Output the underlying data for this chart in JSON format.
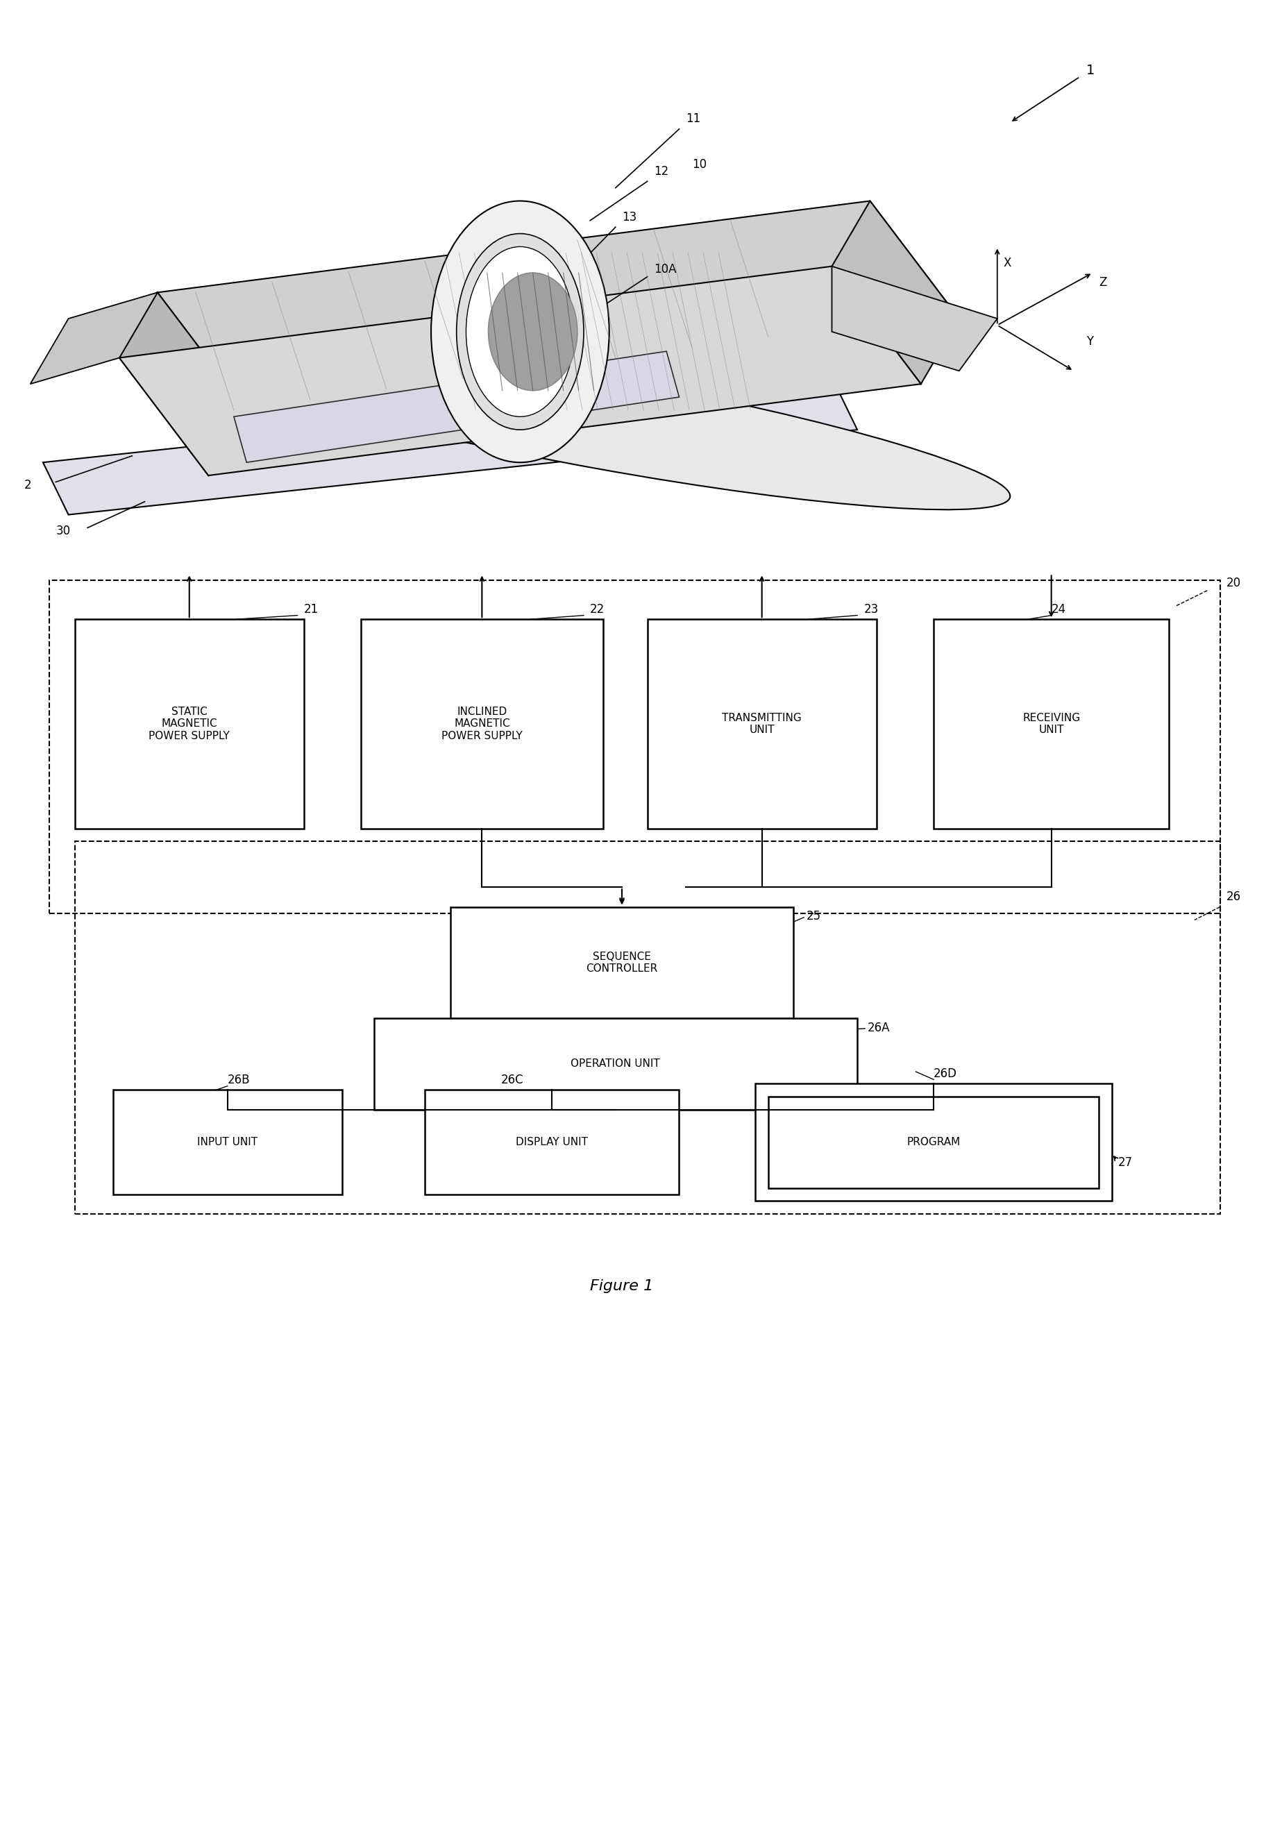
{
  "fig_width": 18.47,
  "fig_height": 26.51,
  "bg_color": "#ffffff",
  "title": "Figure 1",
  "label_1": "1",
  "label_2": "2",
  "label_10": "10",
  "label_10A": "10A",
  "label_11": "11",
  "label_12": "12",
  "label_13": "13",
  "label_20": "20",
  "label_21": "21",
  "label_22": "22",
  "label_23": "23",
  "label_24": "24",
  "label_25": "25",
  "label_26": "26",
  "label_26A": "26A",
  "label_26B": "26B",
  "label_26C": "26C",
  "label_26D": "26D",
  "label_27": "27",
  "label_30": "30",
  "box_21_text": "STATIC\nMAGNETIC\nPOWER SUPPLY",
  "box_22_text": "INCLINED\nMAGNETIC\nPOWER SUPPLY",
  "box_23_text": "TRANSMITTING\nUNIT",
  "box_24_text": "RECEIVING\nUNIT",
  "box_25_text": "SEQUENCE\nCONTROLLER",
  "box_26A_text": "OPERATION UNIT",
  "box_26B_text": "INPUT UNIT",
  "box_26C_text": "DISPLAY UNIT",
  "box_26D_text": "PROGRAM",
  "line_color": "#000000",
  "text_color": "#000000",
  "dashed_color": "#000000",
  "font_size_box": 11,
  "font_size_label": 12,
  "font_size_title": 16,
  "xyz_x": "X",
  "xyz_y": "Y",
  "xyz_z": "Z"
}
